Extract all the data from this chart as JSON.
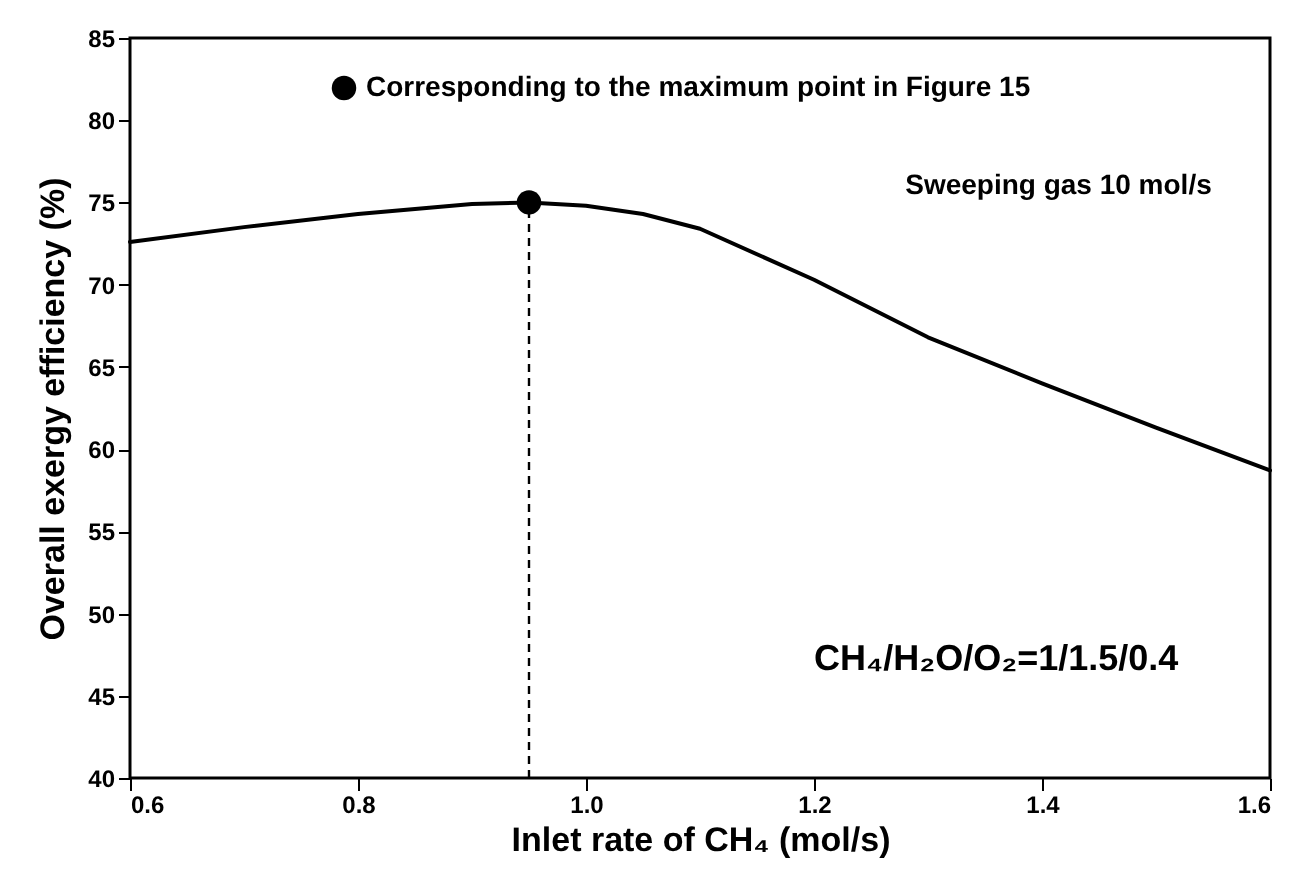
{
  "chart_data": {
    "type": "line",
    "xlabel": "Inlet rate of CH₄ (mol/s)",
    "ylabel": "Overall exergy efficiency (%)",
    "annotations": [
      "Sweeping gas 10 mol/s",
      "CH₄/H₂O/O₂=1/1.5/0.4"
    ],
    "xlim": [
      0.6,
      1.6
    ],
    "xticks": [
      0.6,
      0.8,
      {
        "value": 1,
        "label": "1.0"
      },
      1.2,
      1.4,
      1.6
    ],
    "ylim": [
      40,
      85
    ],
    "yticks": [
      40,
      45,
      50,
      55,
      60,
      65,
      70,
      75,
      80,
      85
    ],
    "grid": false,
    "legend": "top",
    "marker": "none",
    "line_style": "solid",
    "ref_lines": [
      {
        "axis": "x",
        "value": 0.95,
        "line_style": "dashed",
        "color": "#000000"
      }
    ],
    "series": [
      {
        "color": "#000000",
        "x": [
          0.6,
          0.7,
          0.8,
          0.9,
          0.95,
          1.0,
          1.05,
          1.1,
          1.2,
          1.3,
          1.4,
          1.5,
          1.6
        ],
        "values": [
          72.6,
          73.5,
          74.3,
          74.9,
          75.0,
          74.8,
          74.3,
          73.4,
          70.3,
          66.8,
          64.0,
          61.3,
          58.7
        ]
      },
      {
        "type": "scatter",
        "name": "Corresponding to the maximum point in Figure 15",
        "color": "#000000",
        "marker": "circle",
        "x": [
          0.95
        ],
        "values": [
          75.0
        ]
      }
    ]
  }
}
